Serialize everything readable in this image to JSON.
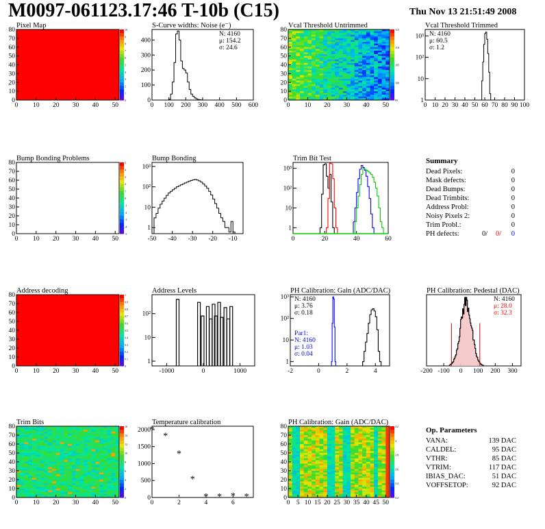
{
  "header": {
    "title": "M0097-061123.17:46 T-10b (C15)",
    "date": "Thu Nov 13 21:51:49 2008"
  },
  "colors": {
    "red": "#ff0000",
    "blue": "#0000ff",
    "green": "#00cc00",
    "black": "#000000"
  },
  "chart_data": [
    {
      "id": "pixel_map",
      "type": "heatmap",
      "title": "Pixel Map",
      "xlim": [
        0,
        52
      ],
      "ylim": [
        0,
        80
      ],
      "xticks": [
        "0",
        "10",
        "20",
        "30",
        "40",
        "50"
      ],
      "yticks": [
        "0",
        "10",
        "20",
        "30",
        "40",
        "50",
        "60",
        "70",
        "80"
      ],
      "uniform_color": "#ff0000",
      "colorbar_labels": [
        "10",
        "9",
        "8",
        "7",
        "6",
        "5",
        "4",
        "3",
        "2",
        "1",
        "0"
      ]
    },
    {
      "id": "scurve",
      "type": "histogram",
      "title": "S-Curve widths: Noise (e⁻)",
      "xlim": [
        0,
        600
      ],
      "ylim": [
        0,
        470
      ],
      "xticks": [
        "0",
        "100",
        "200",
        "300",
        "400",
        "500",
        "600"
      ],
      "yticks": [
        "0",
        "100",
        "200",
        "300",
        "400"
      ],
      "stats": [
        "N: 4160",
        "μ: 154.2",
        "σ: 24.6"
      ],
      "bins": [
        [
          90,
          0
        ],
        [
          100,
          5
        ],
        [
          110,
          40
        ],
        [
          120,
          120
        ],
        [
          130,
          250
        ],
        [
          140,
          440
        ],
        [
          150,
          460
        ],
        [
          160,
          400
        ],
        [
          170,
          260
        ],
        [
          180,
          210
        ],
        [
          190,
          200
        ],
        [
          200,
          180
        ],
        [
          210,
          120
        ],
        [
          220,
          70
        ],
        [
          230,
          40
        ],
        [
          240,
          25
        ],
        [
          250,
          15
        ],
        [
          260,
          8
        ],
        [
          270,
          4
        ],
        [
          280,
          2
        ],
        [
          290,
          1
        ],
        [
          300,
          0
        ]
      ]
    },
    {
      "id": "vcal_untrimmed",
      "type": "heatmap",
      "title": "Vcal Threshold Untrimmed",
      "xlim": [
        0,
        52
      ],
      "ylim": [
        0,
        80
      ],
      "xticks": [
        "0",
        "10",
        "20",
        "30",
        "40",
        "50"
      ],
      "yticks": [
        "0",
        "10",
        "20",
        "30",
        "40",
        "50",
        "60",
        "70",
        "80"
      ],
      "colorbar_labels": [
        "115",
        "110",
        "105",
        "100",
        "95"
      ]
    },
    {
      "id": "vcal_trimmed",
      "type": "histogram",
      "title": "Vcal Threshold Trimmed",
      "xlim": [
        0,
        100
      ],
      "log_y": true,
      "ylim_log": [
        0,
        3.3
      ],
      "xticks": [
        "0",
        "10",
        "20",
        "30",
        "40",
        "50",
        "60",
        "70",
        "80",
        "90",
        "100"
      ],
      "yticks": [
        "1",
        "10",
        "10²",
        "10³"
      ],
      "stats": [
        "N: 4160",
        "μ: 60.5",
        "σ:  1.2"
      ],
      "bins": [
        [
          56,
          1
        ],
        [
          57,
          8
        ],
        [
          58,
          60
        ],
        [
          59,
          400
        ],
        [
          60,
          1300
        ],
        [
          61,
          1500
        ],
        [
          62,
          700
        ],
        [
          63,
          150
        ],
        [
          64,
          20
        ],
        [
          65,
          2
        ],
        [
          66,
          0
        ]
      ]
    },
    {
      "id": "bump_problems",
      "type": "heatmap",
      "title": "Bump Bonding Problems",
      "xlim": [
        0,
        52
      ],
      "ylim": [
        0,
        80
      ],
      "xticks": [
        "0",
        "10",
        "20",
        "30",
        "40",
        "50"
      ],
      "yticks": [
        "0",
        "10",
        "20",
        "30",
        "40",
        "50",
        "60",
        "70",
        "80"
      ],
      "uniform_color": "#ffffff",
      "colorbar_labels": [
        "5",
        "4",
        "3",
        "2",
        "1",
        "0",
        "-1",
        "-2",
        "-3",
        "-4",
        "-5"
      ]
    },
    {
      "id": "bump_bonding",
      "type": "histogram",
      "title": "Bump Bonding",
      "xlim": [
        -50,
        -5
      ],
      "log_y": true,
      "ylim_log": [
        -0.3,
        3.2
      ],
      "xticks": [
        "-50",
        "-40",
        "-30",
        "-20",
        "-10"
      ],
      "yticks": [
        "1",
        "10",
        "10²",
        "10³"
      ],
      "bins": [
        [
          -49,
          3
        ],
        [
          -48,
          5
        ],
        [
          -47,
          9
        ],
        [
          -46,
          14
        ],
        [
          -45,
          20
        ],
        [
          -44,
          28
        ],
        [
          -43,
          38
        ],
        [
          -42,
          50
        ],
        [
          -41,
          60
        ],
        [
          -40,
          72
        ],
        [
          -39,
          85
        ],
        [
          -38,
          100
        ],
        [
          -37,
          112
        ],
        [
          -36,
          125
        ],
        [
          -35,
          140
        ],
        [
          -34,
          155
        ],
        [
          -33,
          170
        ],
        [
          -32,
          190
        ],
        [
          -31,
          205
        ],
        [
          -30,
          220
        ],
        [
          -29,
          230
        ],
        [
          -28,
          215
        ],
        [
          -27,
          195
        ],
        [
          -26,
          170
        ],
        [
          -25,
          140
        ],
        [
          -24,
          110
        ],
        [
          -23,
          85
        ],
        [
          -22,
          60
        ],
        [
          -21,
          40
        ],
        [
          -20,
          25
        ],
        [
          -19,
          15
        ],
        [
          -18,
          9
        ],
        [
          -17,
          5
        ],
        [
          -16,
          3
        ],
        [
          -15,
          2
        ],
        [
          -14,
          1
        ],
        [
          -13,
          1
        ],
        [
          -12,
          0.6
        ],
        [
          -11,
          2
        ],
        [
          -10,
          0.6
        ]
      ]
    },
    {
      "id": "trim_bit_test",
      "type": "histogram",
      "title": "Trim Bit Test",
      "xlim": [
        0,
        60
      ],
      "log_y": true,
      "ylim_log": [
        -0.3,
        3.3
      ],
      "xticks": [
        "0",
        "20",
        "40",
        "60"
      ],
      "yticks": [
        "1",
        "10",
        "10²",
        "10³"
      ],
      "series": [
        {
          "color": "#000000",
          "bins": [
            [
              17,
              1
            ],
            [
              18,
              50
            ],
            [
              19,
              1500
            ],
            [
              20,
              1700
            ],
            [
              21,
              400
            ],
            [
              22,
              100
            ],
            [
              23,
              500
            ],
            [
              24,
              20
            ],
            [
              25,
              1
            ]
          ]
        },
        {
          "color": "#ff0000",
          "bins": [
            [
              21,
              1
            ],
            [
              22,
              30
            ],
            [
              23,
              1800
            ],
            [
              24,
              1700
            ],
            [
              25,
              300
            ],
            [
              26,
              10
            ],
            [
              27,
              1
            ]
          ]
        },
        {
          "color": "#0000ff",
          "bins": [
            [
              38,
              2
            ],
            [
              39,
              10
            ],
            [
              40,
              60
            ],
            [
              41,
              300
            ],
            [
              42,
              900
            ],
            [
              43,
              1400
            ],
            [
              44,
              1100
            ],
            [
              45,
              800
            ],
            [
              46,
              400
            ],
            [
              47,
              120
            ],
            [
              48,
              30
            ],
            [
              49,
              5
            ],
            [
              50,
              1
            ]
          ]
        },
        {
          "color": "#00cc00",
          "bins": [
            [
              39,
              2
            ],
            [
              40,
              10
            ],
            [
              41,
              40
            ],
            [
              42,
              150
            ],
            [
              43,
              500
            ],
            [
              44,
              1000
            ],
            [
              45,
              900
            ],
            [
              46,
              800
            ],
            [
              47,
              700
            ],
            [
              48,
              600
            ],
            [
              49,
              500
            ],
            [
              50,
              350
            ],
            [
              51,
              200
            ],
            [
              52,
              100
            ],
            [
              53,
              40
            ],
            [
              54,
              10
            ],
            [
              55,
              2
            ],
            [
              56,
              1
            ]
          ]
        }
      ]
    },
    {
      "id": "address_decoding",
      "type": "heatmap",
      "title": "Address decoding",
      "xlim": [
        0,
        52
      ],
      "ylim": [
        0,
        80
      ],
      "xticks": [
        "0",
        "10",
        "20",
        "30",
        "40",
        "50"
      ],
      "yticks": [
        "0",
        "10",
        "20",
        "30",
        "40",
        "50",
        "60",
        "70",
        "80"
      ],
      "uniform_color": "#ff0000",
      "colorbar_labels": [
        "1",
        "0.9",
        "0.8",
        "0.7",
        "0.6",
        "0.5",
        "0.4",
        "0.3",
        "0.2",
        "0.1",
        "0"
      ]
    },
    {
      "id": "address_levels",
      "type": "histogram",
      "title": "Address Levels",
      "xlim": [
        -1400,
        1400
      ],
      "log_y": true,
      "ylim_log": [
        -0.2,
        2.8
      ],
      "xticks": [
        "-1000",
        "0",
        "1000"
      ],
      "yticks": [
        "1",
        "10",
        "10²"
      ],
      "spikes": [
        [
          -700,
          400
        ],
        [
          -120,
          300
        ],
        [
          -20,
          80
        ],
        [
          120,
          200
        ],
        [
          200,
          60
        ],
        [
          280,
          250
        ],
        [
          340,
          80
        ],
        [
          430,
          300
        ],
        [
          500,
          70
        ],
        [
          600,
          180
        ],
        [
          680,
          60
        ],
        [
          760,
          200
        ]
      ]
    },
    {
      "id": "ph_gain",
      "type": "histogram",
      "title": "PH Calibration: Gain (ADC/DAC)",
      "xlim": [
        -2,
        5
      ],
      "log_y": true,
      "ylim_log": [
        -0.2,
        3.1
      ],
      "xticks": [
        "-2",
        "0",
        "2",
        "4"
      ],
      "yticks": [
        "1",
        "10",
        "10²",
        "10³"
      ],
      "stats": [
        "N: 4160",
        "μ: 3.76",
        "σ: 0.18"
      ],
      "stats2": [
        "Par1:",
        "N: 4160",
        "μ: 1.03",
        "σ: 0.04"
      ],
      "series": [
        {
          "color": "#000000",
          "bins": [
            [
              3.1,
              1
            ],
            [
              3.2,
              3
            ],
            [
              3.3,
              8
            ],
            [
              3.4,
              20
            ],
            [
              3.5,
              60
            ],
            [
              3.6,
              150
            ],
            [
              3.7,
              250
            ],
            [
              3.8,
              280
            ],
            [
              3.9,
              220
            ],
            [
              4.0,
              120
            ],
            [
              4.1,
              30
            ],
            [
              4.2,
              3
            ],
            [
              4.3,
              1
            ]
          ]
        },
        {
          "color": "#0000ff",
          "bins": [
            [
              0.9,
              1
            ],
            [
              0.95,
              60
            ],
            [
              1.0,
              1000
            ],
            [
              1.05,
              800
            ],
            [
              1.1,
              40
            ],
            [
              1.15,
              1
            ]
          ]
        }
      ]
    },
    {
      "id": "ph_pedestal",
      "type": "histogram",
      "title": "PH Calibration: Pedestal (DAC)",
      "xlim": [
        -200,
        350
      ],
      "ylim": [
        0,
        1
      ],
      "xticks": [
        "-200",
        "-100",
        "0",
        "100",
        "200",
        "300"
      ],
      "stats": [
        "N: 4160",
        "μ: 28.0",
        "σ: 32.3"
      ]
    },
    {
      "id": "trim_bits",
      "type": "heatmap",
      "title": "Trim Bits",
      "xlim": [
        0,
        52
      ],
      "ylim": [
        0,
        80
      ],
      "xticks": [
        "0",
        "10",
        "20",
        "30",
        "40",
        "50"
      ],
      "yticks": [
        "0",
        "10",
        "20",
        "30",
        "40",
        "50",
        "60",
        "70",
        "80"
      ],
      "colorbar_labels": [
        "16",
        "14",
        "12",
        "10",
        "8",
        "6",
        "4",
        "2",
        "0"
      ]
    },
    {
      "id": "temp_calibration",
      "type": "scatter",
      "title": "Temperature calibration",
      "xlim": [
        0,
        7.5
      ],
      "ylim": [
        0,
        2100
      ],
      "xticks": [
        "0",
        "2",
        "4",
        "6"
      ],
      "yticks": [
        "0",
        "500",
        "1000",
        "1500",
        "2000"
      ],
      "points": [
        [
          0,
          2020
        ],
        [
          1,
          1830
        ],
        [
          2,
          1300
        ],
        [
          3,
          560
        ],
        [
          4,
          40
        ],
        [
          5,
          40
        ],
        [
          6,
          60
        ],
        [
          7,
          40
        ]
      ]
    },
    {
      "id": "ph_gain_map",
      "type": "heatmap",
      "title": "PH Calibration: Gain (ADC/DAC)",
      "xlim": [
        0,
        52
      ],
      "ylim": [
        0,
        80
      ],
      "xticks": [
        "0",
        "5",
        "10",
        "15",
        "20",
        "25",
        "30",
        "35",
        "40",
        "45",
        "50"
      ],
      "yticks": [
        "0",
        "10",
        "20",
        "30",
        "40",
        "50",
        "60",
        "70",
        "80"
      ],
      "colorbar_labels": [
        "4.2",
        "4",
        "3.8",
        "3.6",
        "3.4",
        "3.2"
      ]
    }
  ],
  "summary": {
    "title": "Summary",
    "rows": [
      {
        "label": "Dead Pixels:",
        "value": "0"
      },
      {
        "label": "Mask defects:",
        "value": "0"
      },
      {
        "label": "Dead Bumps:",
        "value": "0"
      },
      {
        "label": "Dead Trimbits:",
        "value": "0"
      },
      {
        "label": "Address Probl:",
        "value": "0"
      },
      {
        "label": "Noisy Pixels 2:",
        "value": "0"
      },
      {
        "label": "Trim Probl.:",
        "value": "0"
      }
    ],
    "ph_label": "PH defects:",
    "ph_values": [
      "0/",
      "0/",
      "0"
    ]
  },
  "op_params": {
    "title": "Op. Parameters",
    "rows": [
      {
        "label": "VANA:",
        "value": "139 DAC"
      },
      {
        "label": "CALDEL:",
        "value": "95 DAC"
      },
      {
        "label": "VTHR:",
        "value": "85 DAC"
      },
      {
        "label": "VTRIM:",
        "value": "117 DAC"
      },
      {
        "label": "IBIAS_DAC:",
        "value": "51 DAC"
      },
      {
        "label": "VOFFSETOP:",
        "value": "92 DAC"
      }
    ]
  }
}
